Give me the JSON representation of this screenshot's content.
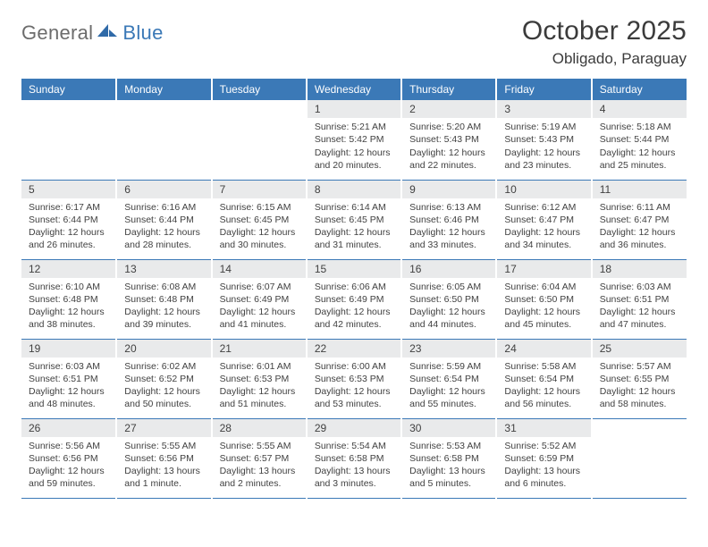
{
  "logo": {
    "word1": "General",
    "word2": "Blue"
  },
  "title": "October 2025",
  "subtitle": "Obligado, Paraguay",
  "colors": {
    "header_bg": "#3b79b7",
    "header_text": "#ffffff",
    "daynum_bg": "#e9eaeb",
    "border": "#3b79b7",
    "text": "#414141",
    "logo_gray": "#6c6c6c",
    "logo_blue": "#3b79b7"
  },
  "weekdays": [
    "Sunday",
    "Monday",
    "Tuesday",
    "Wednesday",
    "Thursday",
    "Friday",
    "Saturday"
  ],
  "cells": [
    [
      {
        "empty": true
      },
      {
        "empty": true
      },
      {
        "empty": true
      },
      {
        "day": "1",
        "sunrise": "5:21 AM",
        "sunset": "5:42 PM",
        "daylight": "12 hours and 20 minutes."
      },
      {
        "day": "2",
        "sunrise": "5:20 AM",
        "sunset": "5:43 PM",
        "daylight": "12 hours and 22 minutes."
      },
      {
        "day": "3",
        "sunrise": "5:19 AM",
        "sunset": "5:43 PM",
        "daylight": "12 hours and 23 minutes."
      },
      {
        "day": "4",
        "sunrise": "5:18 AM",
        "sunset": "5:44 PM",
        "daylight": "12 hours and 25 minutes."
      }
    ],
    [
      {
        "day": "5",
        "sunrise": "6:17 AM",
        "sunset": "6:44 PM",
        "daylight": "12 hours and 26 minutes."
      },
      {
        "day": "6",
        "sunrise": "6:16 AM",
        "sunset": "6:44 PM",
        "daylight": "12 hours and 28 minutes."
      },
      {
        "day": "7",
        "sunrise": "6:15 AM",
        "sunset": "6:45 PM",
        "daylight": "12 hours and 30 minutes."
      },
      {
        "day": "8",
        "sunrise": "6:14 AM",
        "sunset": "6:45 PM",
        "daylight": "12 hours and 31 minutes."
      },
      {
        "day": "9",
        "sunrise": "6:13 AM",
        "sunset": "6:46 PM",
        "daylight": "12 hours and 33 minutes."
      },
      {
        "day": "10",
        "sunrise": "6:12 AM",
        "sunset": "6:47 PM",
        "daylight": "12 hours and 34 minutes."
      },
      {
        "day": "11",
        "sunrise": "6:11 AM",
        "sunset": "6:47 PM",
        "daylight": "12 hours and 36 minutes."
      }
    ],
    [
      {
        "day": "12",
        "sunrise": "6:10 AM",
        "sunset": "6:48 PM",
        "daylight": "12 hours and 38 minutes."
      },
      {
        "day": "13",
        "sunrise": "6:08 AM",
        "sunset": "6:48 PM",
        "daylight": "12 hours and 39 minutes."
      },
      {
        "day": "14",
        "sunrise": "6:07 AM",
        "sunset": "6:49 PM",
        "daylight": "12 hours and 41 minutes."
      },
      {
        "day": "15",
        "sunrise": "6:06 AM",
        "sunset": "6:49 PM",
        "daylight": "12 hours and 42 minutes."
      },
      {
        "day": "16",
        "sunrise": "6:05 AM",
        "sunset": "6:50 PM",
        "daylight": "12 hours and 44 minutes."
      },
      {
        "day": "17",
        "sunrise": "6:04 AM",
        "sunset": "6:50 PM",
        "daylight": "12 hours and 45 minutes."
      },
      {
        "day": "18",
        "sunrise": "6:03 AM",
        "sunset": "6:51 PM",
        "daylight": "12 hours and 47 minutes."
      }
    ],
    [
      {
        "day": "19",
        "sunrise": "6:03 AM",
        "sunset": "6:51 PM",
        "daylight": "12 hours and 48 minutes."
      },
      {
        "day": "20",
        "sunrise": "6:02 AM",
        "sunset": "6:52 PM",
        "daylight": "12 hours and 50 minutes."
      },
      {
        "day": "21",
        "sunrise": "6:01 AM",
        "sunset": "6:53 PM",
        "daylight": "12 hours and 51 minutes."
      },
      {
        "day": "22",
        "sunrise": "6:00 AM",
        "sunset": "6:53 PM",
        "daylight": "12 hours and 53 minutes."
      },
      {
        "day": "23",
        "sunrise": "5:59 AM",
        "sunset": "6:54 PM",
        "daylight": "12 hours and 55 minutes."
      },
      {
        "day": "24",
        "sunrise": "5:58 AM",
        "sunset": "6:54 PM",
        "daylight": "12 hours and 56 minutes."
      },
      {
        "day": "25",
        "sunrise": "5:57 AM",
        "sunset": "6:55 PM",
        "daylight": "12 hours and 58 minutes."
      }
    ],
    [
      {
        "day": "26",
        "sunrise": "5:56 AM",
        "sunset": "6:56 PM",
        "daylight": "12 hours and 59 minutes."
      },
      {
        "day": "27",
        "sunrise": "5:55 AM",
        "sunset": "6:56 PM",
        "daylight": "13 hours and 1 minute."
      },
      {
        "day": "28",
        "sunrise": "5:55 AM",
        "sunset": "6:57 PM",
        "daylight": "13 hours and 2 minutes."
      },
      {
        "day": "29",
        "sunrise": "5:54 AM",
        "sunset": "6:58 PM",
        "daylight": "13 hours and 3 minutes."
      },
      {
        "day": "30",
        "sunrise": "5:53 AM",
        "sunset": "6:58 PM",
        "daylight": "13 hours and 5 minutes."
      },
      {
        "day": "31",
        "sunrise": "5:52 AM",
        "sunset": "6:59 PM",
        "daylight": "13 hours and 6 minutes."
      },
      {
        "empty": true
      }
    ]
  ]
}
